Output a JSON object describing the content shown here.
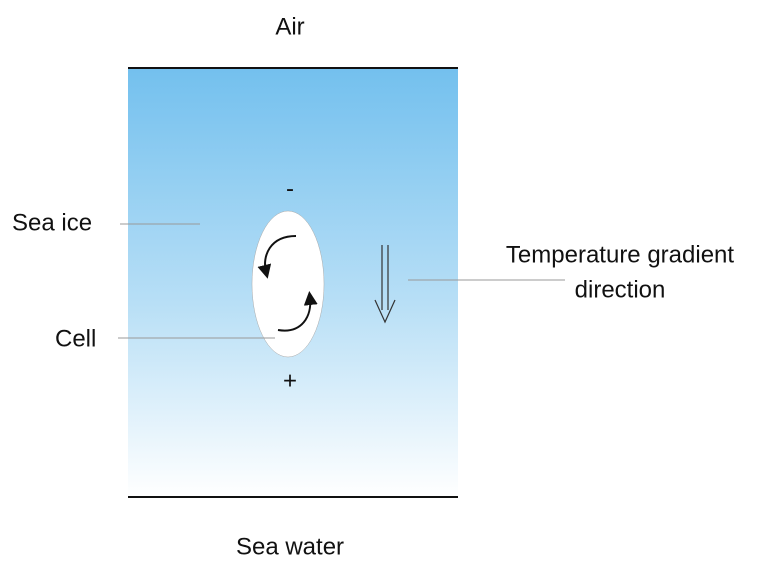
{
  "labels": {
    "air": "Air",
    "sea_ice": "Sea ice",
    "cell": "Cell",
    "top_sign": "-",
    "bottom_sign": "+",
    "gradient": [
      "Temperature gradient",
      "direction"
    ],
    "sea_water": "Sea water"
  }
}
